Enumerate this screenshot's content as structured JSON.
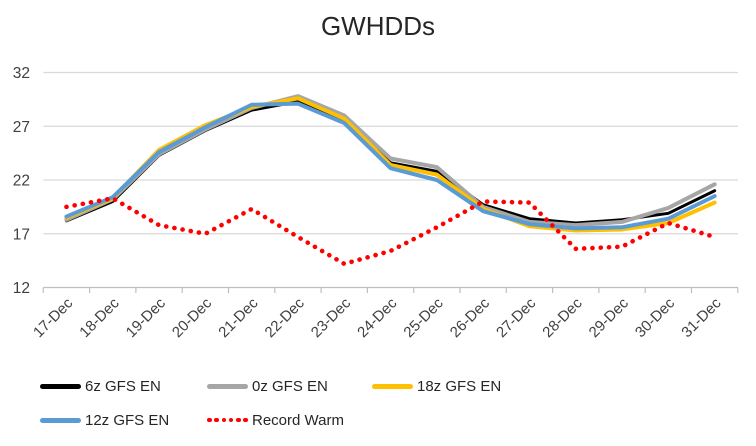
{
  "chart_data": {
    "type": "line",
    "title": "GWHDDs",
    "categories": [
      "17-Dec",
      "18-Dec",
      "19-Dec",
      "20-Dec",
      "21-Dec",
      "22-Dec",
      "23-Dec",
      "24-Dec",
      "25-Dec",
      "26-Dec",
      "27-Dec",
      "28-Dec",
      "29-Dec",
      "30-Dec",
      "31-Dec"
    ],
    "series": [
      {
        "name": "6z GFS EN",
        "color": "#000000",
        "line_style": "solid",
        "values": [
          18.2,
          20.0,
          24.3,
          26.6,
          28.5,
          29.3,
          27.5,
          23.6,
          22.8,
          19.7,
          18.4,
          18.0,
          18.3,
          18.9,
          21.0
        ]
      },
      {
        "name": "0z GFS EN",
        "color": "#A6A6A6",
        "line_style": "solid",
        "values": [
          18.3,
          20.2,
          24.4,
          26.7,
          28.7,
          29.8,
          28.0,
          24.0,
          23.2,
          19.5,
          18.1,
          17.8,
          18.1,
          19.4,
          21.6
        ]
      },
      {
        "name": "18z GFS EN",
        "color": "#FFC000",
        "line_style": "solid",
        "values": [
          18.5,
          20.3,
          24.8,
          27.1,
          28.8,
          29.6,
          27.7,
          23.4,
          22.5,
          19.3,
          17.7,
          17.3,
          17.4,
          18.0,
          19.9
        ]
      },
      {
        "name": "12z GFS EN",
        "color": "#5B9BD5",
        "line_style": "solid",
        "values": [
          18.6,
          20.4,
          24.6,
          26.9,
          29.0,
          29.1,
          27.3,
          23.1,
          22.0,
          19.1,
          17.9,
          17.5,
          17.6,
          18.4,
          20.5
        ]
      },
      {
        "name": "Record Warm",
        "color": "#FF0000",
        "line_style": "dotted",
        "values": [
          19.5,
          20.3,
          17.8,
          17.0,
          19.3,
          16.7,
          14.2,
          15.4,
          17.6,
          20.0,
          19.9,
          15.6,
          15.8,
          18.0,
          16.7
        ]
      }
    ],
    "y_axis": {
      "min": 12,
      "max": 32,
      "tick_step": 5,
      "ticks": [
        12,
        17,
        22,
        27,
        32
      ]
    },
    "x_axis": {
      "label_rotation_deg": -45
    },
    "grid": true,
    "legend_position": "bottom",
    "colors": {
      "gridline": "#D9D9D9",
      "axis": "#BFBFBF",
      "tick_label": "#404040",
      "title": "#262626",
      "legend_label": "#262626",
      "background": "#FFFFFF"
    }
  }
}
